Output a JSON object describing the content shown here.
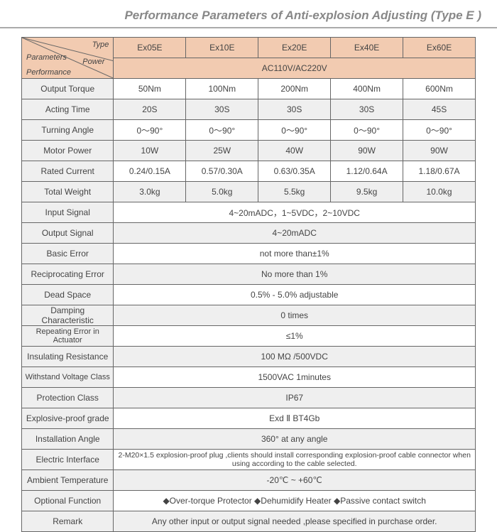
{
  "title": "Performance Parameters of Anti-explosion Adjusting (Type E )",
  "corner": {
    "type": "Type",
    "params": "Parameters",
    "power": "Power",
    "perf": "Performance"
  },
  "typeCols": [
    "Ex05E",
    "Ex10E",
    "Ex20E",
    "Ex40E",
    "Ex60E"
  ],
  "powerRow": "AC110V/AC220V",
  "rows5": [
    {
      "label": "Output Torque",
      "vals": [
        "50Nm",
        "100Nm",
        "200Nm",
        "400Nm",
        "600Nm"
      ],
      "shade": false
    },
    {
      "label": "Acting Time",
      "vals": [
        "20S",
        "30S",
        "30S",
        "30S",
        "45S"
      ],
      "shade": true
    },
    {
      "label": "Turning Angle",
      "vals": [
        "0～90°",
        "0～90°",
        "0～90°",
        "0～90°",
        "0～90°"
      ],
      "shade": false
    },
    {
      "label": "Motor Power",
      "vals": [
        "10W",
        "25W",
        "40W",
        "90W",
        "90W"
      ],
      "shade": true
    },
    {
      "label": "Rated Current",
      "vals": [
        "0.24/0.15A",
        "0.57/0.30A",
        "0.63/0.35A",
        "1.12/0.64A",
        "1.18/0.67A"
      ],
      "shade": false
    },
    {
      "label": "Total Weight",
      "vals": [
        "3.0kg",
        "5.0kg",
        "5.5kg",
        "9.5kg",
        "10.0kg"
      ],
      "shade": true
    }
  ],
  "rowsSpan": [
    {
      "label": "Input Signal",
      "val": "4~20mADC，1~5VDC，2~10VDC",
      "shade": false
    },
    {
      "label": "Output Signal",
      "val": "4~20mADC",
      "shade": true
    },
    {
      "label": "Basic Error",
      "val": "not more than±1%",
      "shade": false
    },
    {
      "label": "Reciprocating Error",
      "val": "No more than 1%",
      "shade": true
    },
    {
      "label": "Dead Space",
      "val": "0.5% - 5.0% adjustable",
      "shade": false
    },
    {
      "label": "Damping Characteristic",
      "val": "0 times",
      "shade": true
    },
    {
      "label": "Repeating  Error in Actuator",
      "val": "≤1%",
      "shade": false
    },
    {
      "label": "Insulating Resistance",
      "val": "100 MΩ /500VDC",
      "shade": true
    },
    {
      "label": "Withstand Voltage Class",
      "val": "1500VAC    1minutes",
      "shade": false
    },
    {
      "label": "Protection Class",
      "val": "IP67",
      "shade": true
    },
    {
      "label": "Explosive-proof grade",
      "val": "Exd Ⅱ BT4Gb",
      "shade": false
    },
    {
      "label": "Installation Angle",
      "val": "360°  at any angle",
      "shade": true
    },
    {
      "label": "Electric Interface",
      "val": "2-M20×1.5 explosion-proof plug ,clients should install corresponding  explosion-proof cable connector when using according to the cable selected.",
      "shade": false,
      "small": true
    },
    {
      "label": "Ambient Temperature",
      "val": "-20℃ ~ +60℃",
      "shade": true
    },
    {
      "label": "Optional Function",
      "val": "◆Over-torque Protector    ◆Dehumidify Heater    ◆Passive contact switch",
      "shade": false
    },
    {
      "label": "Remark",
      "val": "Any other input or output signal needed ,please specified in purchase order.",
      "shade": true
    }
  ]
}
